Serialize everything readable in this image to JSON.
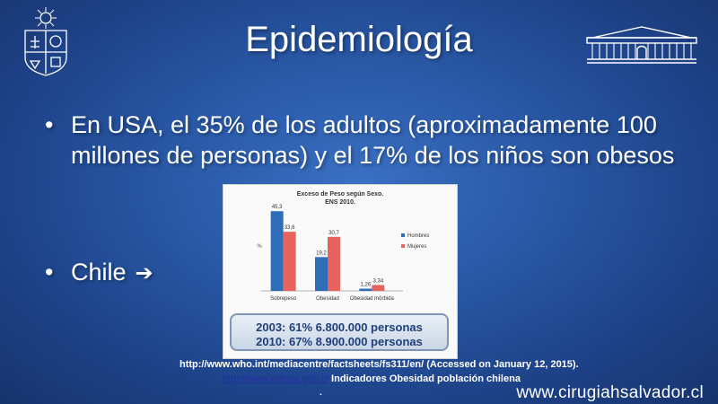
{
  "slide": {
    "title": "Epidemiología",
    "bullet_char": "•",
    "bullet1": "En USA, el 35% de los adultos (aproximadamente 100 millones de personas) y el 17% de los niños son obesos",
    "bullet2": "Chile",
    "arrow_icon": "right-arrow-icon",
    "arrow_glyph": "➔"
  },
  "stats": {
    "line1": "2003: 61% 6.800.000 personas",
    "line2": "2010: 67% 8.900.000 personas"
  },
  "sources": {
    "who": "http://www.who.int/mediacentre/factsheets/fs311/en/ (Accessed on January 12, 2015).",
    "minsal_link": "http://www.minsal.gob.cl",
    "minsal_text": " Indicadores Obesidad población chilena",
    "dot": "."
  },
  "footer": {
    "website": "www.cirugiahsalvador.cl"
  },
  "colors": {
    "hombres": "#2e6db8",
    "mujeres": "#e8625e",
    "background": "#2a5aa8"
  },
  "chart_data": {
    "type": "bar",
    "title": "Exceso de Peso según Sexo.",
    "subtitle": "ENS 2010.",
    "ylabel": "%",
    "categories": [
      "Sobrepeso",
      "Obesidad",
      "Obesidad mórbida"
    ],
    "series": [
      {
        "name": "Hombres",
        "values": [
          45.3,
          19.2,
          1.26
        ],
        "labels": [
          "45,3",
          "19,2",
          "1,26"
        ]
      },
      {
        "name": "Mujeres",
        "values": [
          33.6,
          30.7,
          3.34
        ],
        "labels": [
          "33,6",
          "30,7",
          "3,34"
        ]
      }
    ],
    "ylim": [
      0,
      50
    ],
    "legend": "right"
  }
}
